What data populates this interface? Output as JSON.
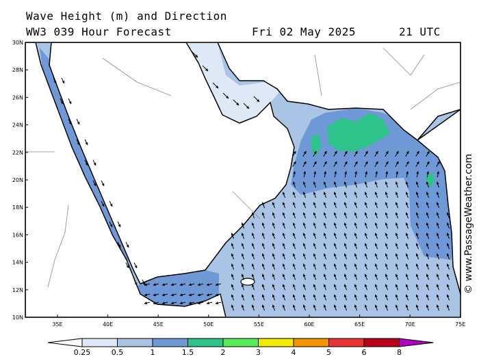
{
  "title": "Wave Height (m) and Direction",
  "subtitle": "WW3 039 Hour Forecast",
  "date": "Fri 02 May 2025",
  "time": "21 UTC",
  "credit": "© www.PassageWeather.com",
  "lat_labels": [
    "30N",
    "28N",
    "26N",
    "24N",
    "22N",
    "20N",
    "18N",
    "16N",
    "14N",
    "12N",
    "10N"
  ],
  "lon_labels": [
    "35E",
    "40E",
    "45E",
    "50E",
    "55E",
    "60E",
    "65E",
    "70E",
    "75E"
  ],
  "legend": {
    "labels": [
      "0.25",
      "0.5",
      "1",
      "1.5",
      "2",
      "3",
      "4",
      "5",
      "6",
      "8"
    ],
    "colors": [
      "#ffffff",
      "#dfe8f6",
      "#a9c4e4",
      "#6f98d6",
      "#2ec38a",
      "#59ec59",
      "#f2ea00",
      "#f59200",
      "#e83434",
      "#b80018",
      "#b000c0"
    ]
  },
  "colors": {
    "land": "#ffffff",
    "sea_low": "#dfe8f6",
    "sea_mid": "#a9c4e4",
    "sea_high": "#6f98d6",
    "green": "#2ec38a",
    "coast": "#000000",
    "border": "#8a8a8a"
  }
}
